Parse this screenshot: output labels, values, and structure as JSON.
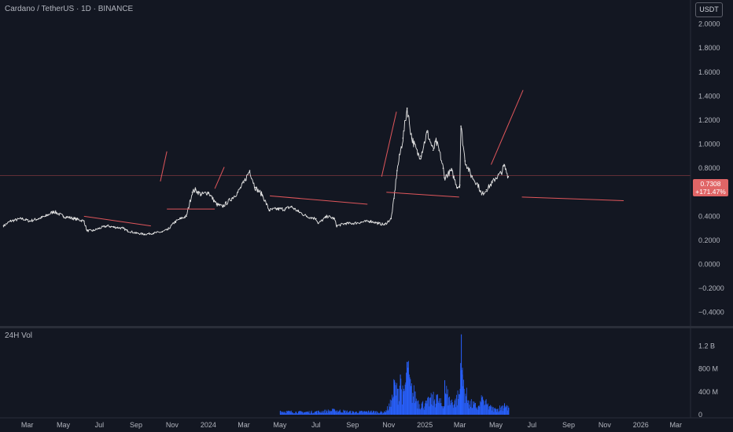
{
  "header": {
    "title": "Cardano / TetherUS · 1D · BINANCE",
    "currency": "USDT"
  },
  "last_price": {
    "value": "0.7308",
    "change": "+171.47%"
  },
  "colors": {
    "background": "#131722",
    "price_line": "#e5e5e5",
    "trendline": "#e0565b",
    "volume": "#2962ff",
    "badge": "#e06566"
  },
  "chart_data": [
    {
      "type": "line",
      "title": "Cardano / TetherUS · 1D · BINANCE",
      "series": [
        {
          "name": "",
          "x": [
            "2023-01-20",
            "2023-02-01",
            "2023-02-20",
            "2023-03-05",
            "2023-03-20",
            "2023-04-01",
            "2023-04-15",
            "2023-05-01",
            "2023-05-20",
            "2023-06-05",
            "2023-06-10",
            "2023-06-20",
            "2023-07-01",
            "2023-07-14",
            "2023-07-25",
            "2023-08-10",
            "2023-08-17",
            "2023-09-01",
            "2023-09-15",
            "2023-10-01",
            "2023-10-15",
            "2023-10-25",
            "2023-11-05",
            "2023-11-15",
            "2023-11-25",
            "2023-12-05",
            "2023-12-10",
            "2023-12-20",
            "2024-01-01",
            "2024-01-15",
            "2024-01-25",
            "2024-02-10",
            "2024-02-20",
            "2024-03-01",
            "2024-03-11",
            "2024-03-20",
            "2024-04-01",
            "2024-04-13",
            "2024-04-25",
            "2024-05-10",
            "2024-05-20",
            "2024-06-01",
            "2024-06-15",
            "2024-07-01",
            "2024-07-05",
            "2024-07-20",
            "2024-08-01",
            "2024-08-05",
            "2024-08-20",
            "2024-09-01",
            "2024-09-15",
            "2024-10-01",
            "2024-10-15",
            "2024-10-25",
            "2024-11-05",
            "2024-11-10",
            "2024-11-15",
            "2024-11-25",
            "2024-12-02",
            "2024-12-10",
            "2024-12-20",
            "2024-12-25",
            "2025-01-05",
            "2025-01-15",
            "2025-01-20",
            "2025-01-25",
            "2025-02-01",
            "2025-02-03",
            "2025-02-15",
            "2025-02-25",
            "2025-03-01",
            "2025-03-03",
            "2025-03-10",
            "2025-03-20",
            "2025-04-01",
            "2025-04-07",
            "2025-04-15",
            "2025-04-25",
            "2025-05-01",
            "2025-05-10",
            "2025-05-15",
            "2025-05-22"
          ],
          "values": [
            0.32,
            0.36,
            0.38,
            0.36,
            0.38,
            0.4,
            0.44,
            0.4,
            0.38,
            0.36,
            0.28,
            0.28,
            0.3,
            0.32,
            0.31,
            0.3,
            0.28,
            0.26,
            0.25,
            0.26,
            0.27,
            0.29,
            0.35,
            0.38,
            0.4,
            0.6,
            0.62,
            0.58,
            0.6,
            0.5,
            0.48,
            0.55,
            0.6,
            0.68,
            0.78,
            0.64,
            0.58,
            0.45,
            0.46,
            0.46,
            0.48,
            0.44,
            0.4,
            0.38,
            0.34,
            0.4,
            0.38,
            0.32,
            0.34,
            0.34,
            0.35,
            0.36,
            0.34,
            0.33,
            0.38,
            0.55,
            0.78,
            1.05,
            1.3,
            1.05,
            0.92,
            0.9,
            1.1,
            0.95,
            1.02,
            0.95,
            0.8,
            0.72,
            0.78,
            0.64,
            0.66,
            1.15,
            0.86,
            0.74,
            0.66,
            0.58,
            0.62,
            0.68,
            0.72,
            0.76,
            0.82,
            0.73
          ]
        }
      ],
      "ylim": [
        -0.5,
        2.2
      ],
      "yticks": [
        "2.0000",
        "1.8000",
        "1.6000",
        "1.4000",
        "1.2000",
        "1.0000",
        "0.8000",
        "0.6000",
        "0.4000",
        "0.2000",
        "0.0000",
        "−0.2000",
        "−0.4000"
      ],
      "ytick_values": [
        2.0,
        1.8,
        1.6,
        1.4,
        1.2,
        1.0,
        0.8,
        0.6,
        0.4,
        0.2,
        0.0,
        -0.2,
        -0.4
      ],
      "xticks": [
        "Mar",
        "May",
        "Jul",
        "Sep",
        "Nov",
        "2024",
        "Mar",
        "May",
        "Jul",
        "Sep",
        "Nov",
        "2025",
        "Mar",
        "May",
        "Jul",
        "Sep",
        "Nov",
        "2026",
        "Mar"
      ],
      "xtick_values": [
        "2023-03-01",
        "2023-05-01",
        "2023-07-01",
        "2023-09-01",
        "2023-11-01",
        "2024-01-01",
        "2024-03-01",
        "2024-05-01",
        "2024-07-01",
        "2024-09-01",
        "2024-11-01",
        "2025-01-01",
        "2025-03-01",
        "2025-05-01",
        "2025-07-01",
        "2025-09-01",
        "2025-11-01",
        "2026-01-01",
        "2026-03-01"
      ],
      "xlim": [
        "2023-01-14",
        "2026-03-26"
      ],
      "grid": false,
      "horizontal_line": 0.74,
      "trendlines": [
        {
          "x": [
            "2023-06-05",
            "2023-09-26"
          ],
          "y": [
            0.4,
            0.32
          ]
        },
        {
          "x": [
            "2023-10-12",
            "2023-10-23"
          ],
          "y": [
            0.69,
            0.94
          ]
        },
        {
          "x": [
            "2023-10-23",
            "2024-01-12"
          ],
          "y": [
            0.46,
            0.46
          ]
        },
        {
          "x": [
            "2024-01-12",
            "2024-01-28"
          ],
          "y": [
            0.63,
            0.81
          ]
        },
        {
          "x": [
            "2024-04-14",
            "2024-09-26"
          ],
          "y": [
            0.57,
            0.5
          ]
        },
        {
          "x": [
            "2024-10-20",
            "2024-11-14"
          ],
          "y": [
            0.73,
            1.27
          ]
        },
        {
          "x": [
            "2024-10-28",
            "2025-02-28"
          ],
          "y": [
            0.6,
            0.56
          ]
        },
        {
          "x": [
            "2025-04-23",
            "2025-06-16"
          ],
          "y": [
            0.83,
            1.45
          ]
        },
        {
          "x": [
            "2025-06-14",
            "2025-12-03"
          ],
          "y": [
            0.56,
            0.53
          ]
        }
      ]
    },
    {
      "type": "bar",
      "title": "24H Vol",
      "yticks": [
        "1.2 B",
        "800 M",
        "400 M",
        "0"
      ],
      "ytick_values": [
        1200,
        800,
        400,
        0
      ],
      "ylim": [
        0,
        1450
      ],
      "series": [
        {
          "name": "",
          "x": [
            "2024-05-01",
            "2024-06-01",
            "2024-07-01",
            "2024-08-01",
            "2024-09-01",
            "2024-10-01",
            "2024-10-25",
            "2024-11-05",
            "2024-11-10",
            "2024-11-15",
            "2024-11-20",
            "2024-11-25",
            "2024-12-02",
            "2024-12-08",
            "2024-12-15",
            "2024-12-20",
            "2025-01-01",
            "2025-01-10",
            "2025-01-20",
            "2025-02-01",
            "2025-02-03",
            "2025-02-10",
            "2025-02-20",
            "2025-03-01",
            "2025-03-02",
            "2025-03-03",
            "2025-03-05",
            "2025-03-15",
            "2025-04-01",
            "2025-04-07",
            "2025-04-20",
            "2025-05-01",
            "2025-05-15",
            "2025-05-22"
          ],
          "values": [
            70,
            55,
            60,
            90,
            55,
            65,
            50,
            250,
            600,
            450,
            700,
            350,
            920,
            500,
            400,
            250,
            200,
            300,
            350,
            150,
            600,
            300,
            250,
            450,
            900,
            1400,
            700,
            250,
            150,
            300,
            150,
            100,
            200,
            120
          ]
        }
      ]
    }
  ]
}
